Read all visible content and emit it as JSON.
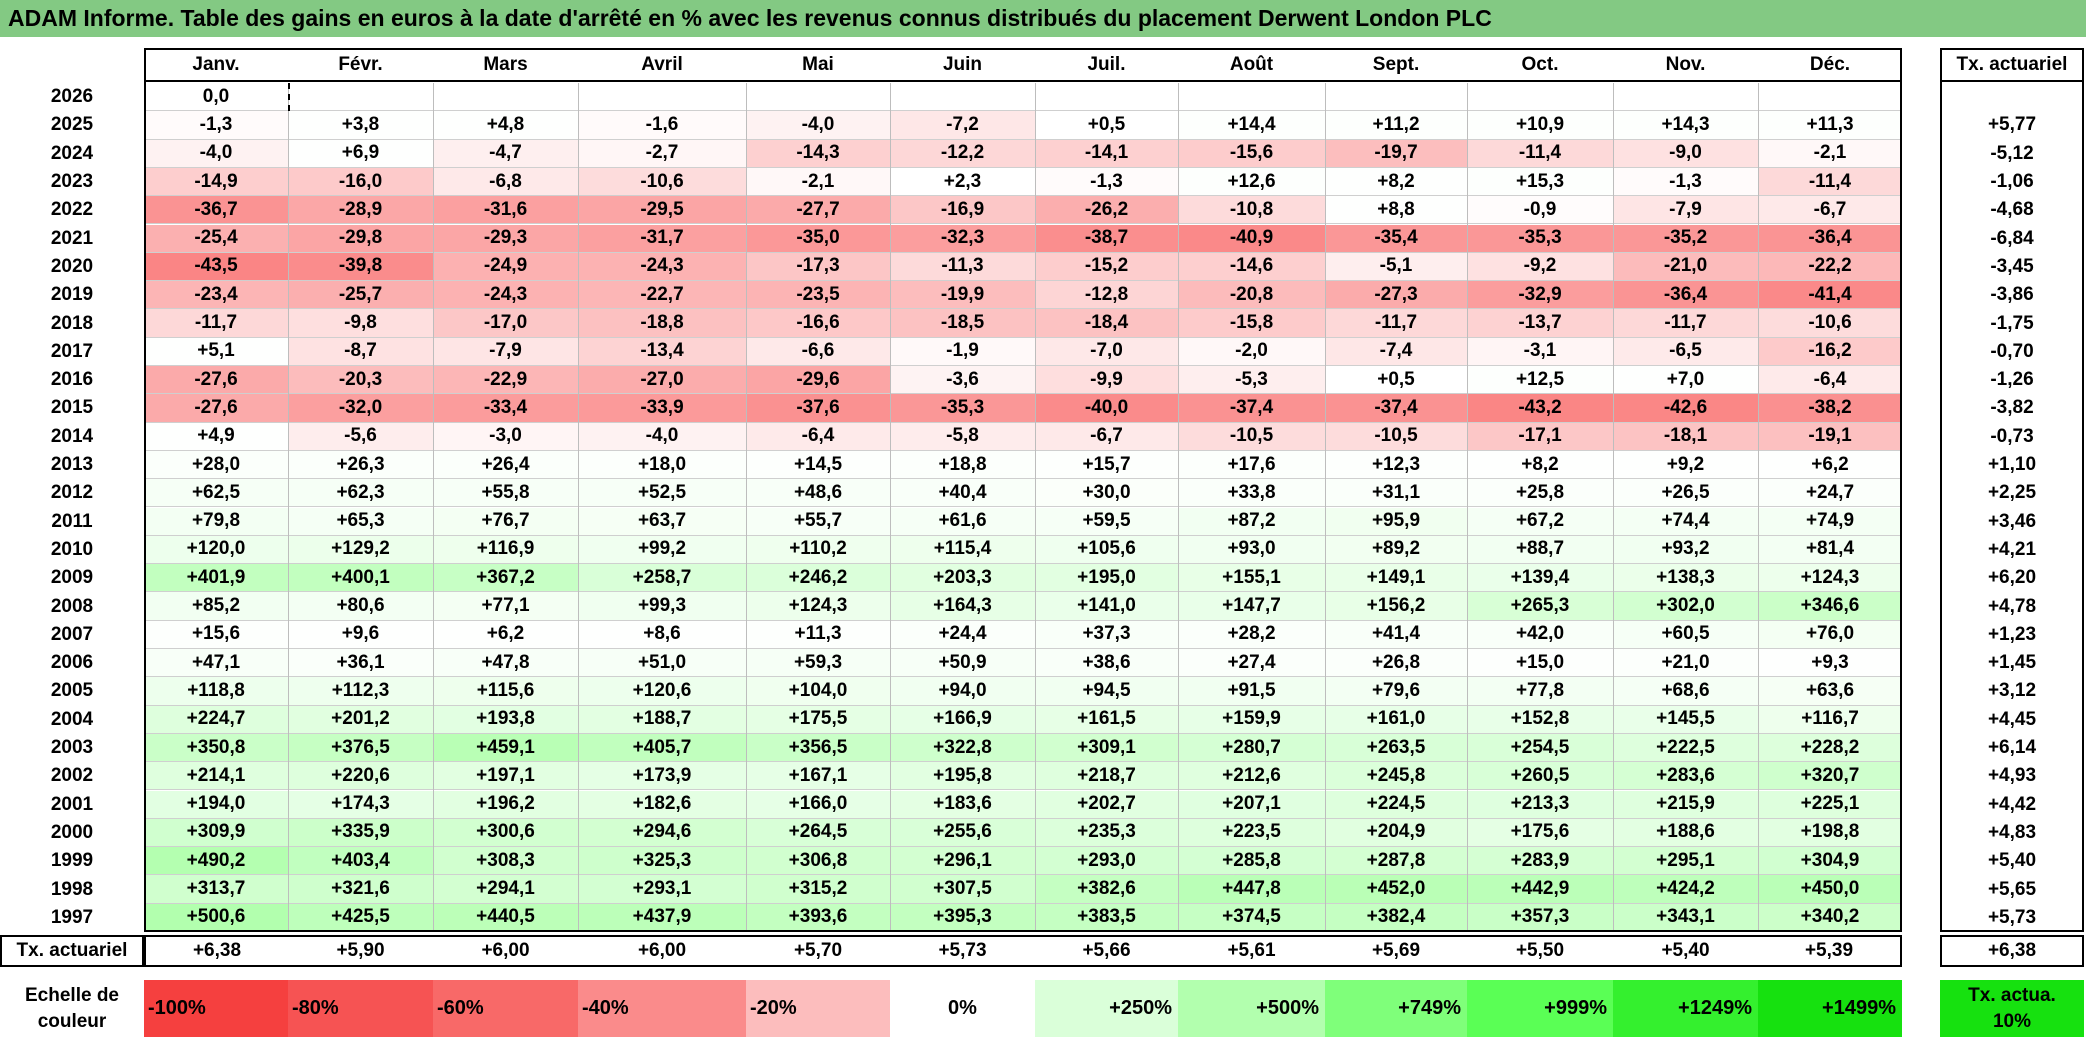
{
  "title": "ADAM Informe. Table des gains en euros à la date d'arrêté en % avec les revenus connus distribués du placement Derwent London PLC",
  "chart_data": {
    "type": "table",
    "columns": [
      "Janv.",
      "Févr.",
      "Mars",
      "Avril",
      "Mai",
      "Juin",
      "Juil.",
      "Août",
      "Sept.",
      "Oct.",
      "Nov.",
      "Déc."
    ],
    "rate_header": "Tx. actuariel",
    "rows": [
      {
        "year": "2026",
        "values": [
          "0,0",
          "",
          "",
          "",
          "",
          "",
          "",
          "",
          "",
          "",
          "",
          ""
        ],
        "rate": ""
      },
      {
        "year": "2025",
        "values": [
          "-1,3",
          "+3,8",
          "+4,8",
          "-1,6",
          "-4,0",
          "-7,2",
          "+0,5",
          "+14,4",
          "+11,2",
          "+10,9",
          "+14,3",
          "+11,3"
        ],
        "rate": "+5,77"
      },
      {
        "year": "2024",
        "values": [
          "-4,0",
          "+6,9",
          "-4,7",
          "-2,7",
          "-14,3",
          "-12,2",
          "-14,1",
          "-15,6",
          "-19,7",
          "-11,4",
          "-9,0",
          "-2,1"
        ],
        "rate": "-5,12"
      },
      {
        "year": "2023",
        "values": [
          "-14,9",
          "-16,0",
          "-6,8",
          "-10,6",
          "-2,1",
          "+2,3",
          "-1,3",
          "+12,6",
          "+8,2",
          "+15,3",
          "-1,3",
          "-11,4"
        ],
        "rate": "-1,06"
      },
      {
        "year": "2022",
        "values": [
          "-36,7",
          "-28,9",
          "-31,6",
          "-29,5",
          "-27,7",
          "-16,9",
          "-26,2",
          "-10,8",
          "+8,8",
          "-0,9",
          "-7,9",
          "-6,7"
        ],
        "rate": "-4,68"
      },
      {
        "year": "2021",
        "values": [
          "-25,4",
          "-29,8",
          "-29,3",
          "-31,7",
          "-35,0",
          "-32,3",
          "-38,7",
          "-40,9",
          "-35,4",
          "-35,3",
          "-35,2",
          "-36,4"
        ],
        "rate": "-6,84"
      },
      {
        "year": "2020",
        "values": [
          "-43,5",
          "-39,8",
          "-24,9",
          "-24,3",
          "-17,3",
          "-11,3",
          "-15,2",
          "-14,6",
          "-5,1",
          "-9,2",
          "-21,0",
          "-22,2"
        ],
        "rate": "-3,45"
      },
      {
        "year": "2019",
        "values": [
          "-23,4",
          "-25,7",
          "-24,3",
          "-22,7",
          "-23,5",
          "-19,9",
          "-12,8",
          "-20,8",
          "-27,3",
          "-32,9",
          "-36,4",
          "-41,4"
        ],
        "rate": "-3,86"
      },
      {
        "year": "2018",
        "values": [
          "-11,7",
          "-9,8",
          "-17,0",
          "-18,8",
          "-16,6",
          "-18,5",
          "-18,4",
          "-15,8",
          "-11,7",
          "-13,7",
          "-11,7",
          "-10,6"
        ],
        "rate": "-1,75"
      },
      {
        "year": "2017",
        "values": [
          "+5,1",
          "-8,7",
          "-7,9",
          "-13,4",
          "-6,6",
          "-1,9",
          "-7,0",
          "-2,0",
          "-7,4",
          "-3,1",
          "-6,5",
          "-16,2"
        ],
        "rate": "-0,70"
      },
      {
        "year": "2016",
        "values": [
          "-27,6",
          "-20,3",
          "-22,9",
          "-27,0",
          "-29,6",
          "-3,6",
          "-9,9",
          "-5,3",
          "+0,5",
          "+12,5",
          "+7,0",
          "-6,4"
        ],
        "rate": "-1,26"
      },
      {
        "year": "2015",
        "values": [
          "-27,6",
          "-32,0",
          "-33,4",
          "-33,9",
          "-37,6",
          "-35,3",
          "-40,0",
          "-37,4",
          "-37,4",
          "-43,2",
          "-42,6",
          "-38,2"
        ],
        "rate": "-3,82"
      },
      {
        "year": "2014",
        "values": [
          "+4,9",
          "-5,6",
          "-3,0",
          "-4,0",
          "-6,4",
          "-5,8",
          "-6,7",
          "-10,5",
          "-10,5",
          "-17,1",
          "-18,1",
          "-19,1"
        ],
        "rate": "-0,73"
      },
      {
        "year": "2013",
        "values": [
          "+28,0",
          "+26,3",
          "+26,4",
          "+18,0",
          "+14,5",
          "+18,8",
          "+15,7",
          "+17,6",
          "+12,3",
          "+8,2",
          "+9,2",
          "+6,2"
        ],
        "rate": "+1,10"
      },
      {
        "year": "2012",
        "values": [
          "+62,5",
          "+62,3",
          "+55,8",
          "+52,5",
          "+48,6",
          "+40,4",
          "+30,0",
          "+33,8",
          "+31,1",
          "+25,8",
          "+26,5",
          "+24,7"
        ],
        "rate": "+2,25"
      },
      {
        "year": "2011",
        "values": [
          "+79,8",
          "+65,3",
          "+76,7",
          "+63,7",
          "+55,7",
          "+61,6",
          "+59,5",
          "+87,2",
          "+95,9",
          "+67,2",
          "+74,4",
          "+74,9"
        ],
        "rate": "+3,46"
      },
      {
        "year": "2010",
        "values": [
          "+120,0",
          "+129,2",
          "+116,9",
          "+99,2",
          "+110,2",
          "+115,4",
          "+105,6",
          "+93,0",
          "+89,2",
          "+88,7",
          "+93,2",
          "+81,4"
        ],
        "rate": "+4,21"
      },
      {
        "year": "2009",
        "values": [
          "+401,9",
          "+400,1",
          "+367,2",
          "+258,7",
          "+246,2",
          "+203,3",
          "+195,0",
          "+155,1",
          "+149,1",
          "+139,4",
          "+138,3",
          "+124,3"
        ],
        "rate": "+6,20"
      },
      {
        "year": "2008",
        "values": [
          "+85,2",
          "+80,6",
          "+77,1",
          "+99,3",
          "+124,3",
          "+164,3",
          "+141,0",
          "+147,7",
          "+156,2",
          "+265,3",
          "+302,0",
          "+346,6"
        ],
        "rate": "+4,78"
      },
      {
        "year": "2007",
        "values": [
          "+15,6",
          "+9,6",
          "+6,2",
          "+8,6",
          "+11,3",
          "+24,4",
          "+37,3",
          "+28,2",
          "+41,4",
          "+42,0",
          "+60,5",
          "+76,0"
        ],
        "rate": "+1,23"
      },
      {
        "year": "2006",
        "values": [
          "+47,1",
          "+36,1",
          "+47,8",
          "+51,0",
          "+59,3",
          "+50,9",
          "+38,6",
          "+27,4",
          "+26,8",
          "+15,0",
          "+21,0",
          "+9,3"
        ],
        "rate": "+1,45"
      },
      {
        "year": "2005",
        "values": [
          "+118,8",
          "+112,3",
          "+115,6",
          "+120,6",
          "+104,0",
          "+94,0",
          "+94,5",
          "+91,5",
          "+79,6",
          "+77,8",
          "+68,6",
          "+63,6"
        ],
        "rate": "+3,12"
      },
      {
        "year": "2004",
        "values": [
          "+224,7",
          "+201,2",
          "+193,8",
          "+188,7",
          "+175,5",
          "+166,9",
          "+161,5",
          "+159,9",
          "+161,0",
          "+152,8",
          "+145,5",
          "+116,7"
        ],
        "rate": "+4,45"
      },
      {
        "year": "2003",
        "values": [
          "+350,8",
          "+376,5",
          "+459,1",
          "+405,7",
          "+356,5",
          "+322,8",
          "+309,1",
          "+280,7",
          "+263,5",
          "+254,5",
          "+222,5",
          "+228,2"
        ],
        "rate": "+6,14"
      },
      {
        "year": "2002",
        "values": [
          "+214,1",
          "+220,6",
          "+197,1",
          "+173,9",
          "+167,1",
          "+195,8",
          "+218,7",
          "+212,6",
          "+245,8",
          "+260,5",
          "+283,6",
          "+320,7"
        ],
        "rate": "+4,93"
      },
      {
        "year": "2001",
        "values": [
          "+194,0",
          "+174,3",
          "+196,2",
          "+182,6",
          "+166,0",
          "+183,6",
          "+202,7",
          "+207,1",
          "+224,5",
          "+213,3",
          "+215,9",
          "+225,1"
        ],
        "rate": "+4,42"
      },
      {
        "year": "2000",
        "values": [
          "+309,9",
          "+335,9",
          "+300,6",
          "+294,6",
          "+264,5",
          "+255,6",
          "+235,3",
          "+223,5",
          "+204,9",
          "+175,6",
          "+188,6",
          "+198,8"
        ],
        "rate": "+4,83"
      },
      {
        "year": "1999",
        "values": [
          "+490,2",
          "+403,4",
          "+308,3",
          "+325,3",
          "+306,8",
          "+296,1",
          "+293,0",
          "+285,8",
          "+287,8",
          "+283,9",
          "+295,1",
          "+304,9"
        ],
        "rate": "+5,40"
      },
      {
        "year": "1998",
        "values": [
          "+313,7",
          "+321,6",
          "+294,1",
          "+293,1",
          "+315,2",
          "+307,5",
          "+382,6",
          "+447,8",
          "+452,0",
          "+442,9",
          "+424,2",
          "+450,0"
        ],
        "rate": "+5,65"
      },
      {
        "year": "1997",
        "values": [
          "+500,6",
          "+425,5",
          "+440,5",
          "+437,9",
          "+393,6",
          "+395,3",
          "+383,5",
          "+374,5",
          "+382,4",
          "+357,3",
          "+343,1",
          "+340,2"
        ],
        "rate": "+5,73"
      }
    ],
    "footer_label": "Tx. actuariel",
    "footer_values": [
      "+6,38",
      "+5,90",
      "+6,00",
      "+6,00",
      "+5,70",
      "+5,73",
      "+5,66",
      "+5,61",
      "+5,69",
      "+5,50",
      "+5,40",
      "+5,39"
    ],
    "footer_rate": "+6,38",
    "scale_label": "Echelle de couleur",
    "scale": [
      {
        "label": "-100%",
        "value": -100,
        "color": "#f5403f"
      },
      {
        "label": "-80%",
        "value": -80,
        "color": "#f65353"
      },
      {
        "label": "-60%",
        "value": -60,
        "color": "#f86968"
      },
      {
        "label": "-40%",
        "value": -40,
        "color": "#fa8b8b"
      },
      {
        "label": "-20%",
        "value": -20,
        "color": "#fcbdbd"
      },
      {
        "label": "0%",
        "value": 0,
        "color": "#ffffff"
      },
      {
        "label": "+250%",
        "value": 250,
        "color": "#daffd9"
      },
      {
        "label": "+500%",
        "value": 500,
        "color": "#b2ffae"
      },
      {
        "label": "+749%",
        "value": 749,
        "color": "#7fff7a"
      },
      {
        "label": "+999%",
        "value": 999,
        "color": "#5aff55"
      },
      {
        "label": "+1249%",
        "value": 1249,
        "color": "#34f02e"
      },
      {
        "label": "+1499%",
        "value": 1499,
        "color": "#16e10f"
      }
    ],
    "scale_rate_label": "Tx. actua. 10%",
    "scale_rate_color": "#16e10f"
  }
}
